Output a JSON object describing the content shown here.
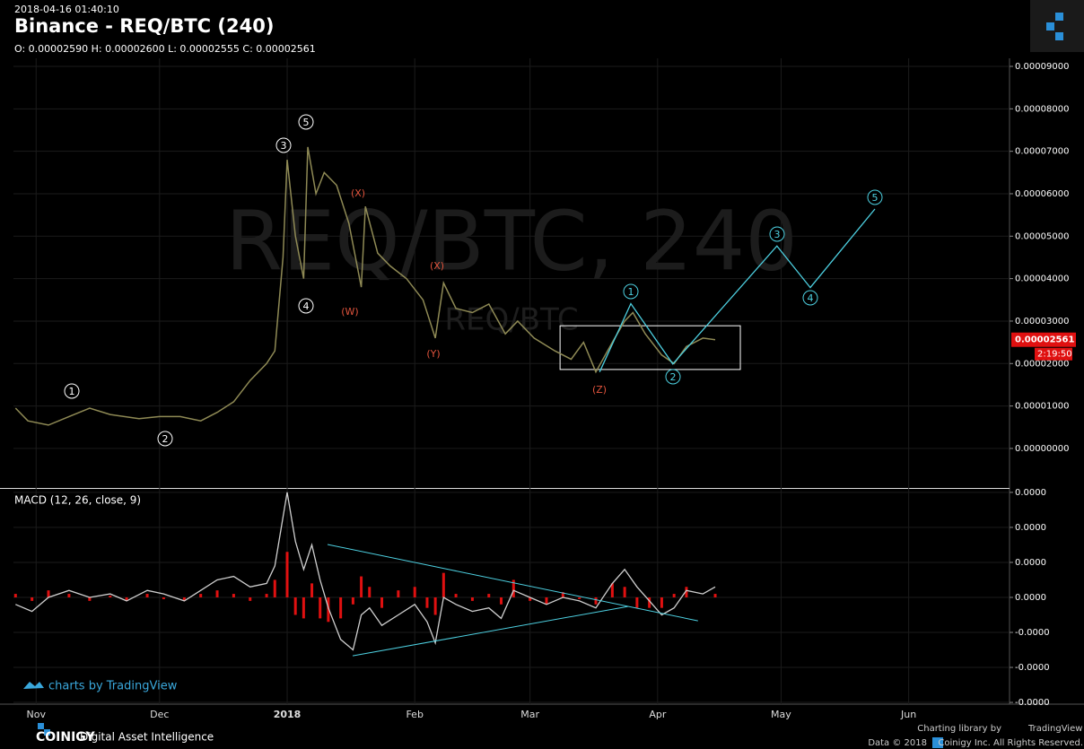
{
  "header": {
    "timestamp": "2018-04-16 01:40:10",
    "title": "Binance - REQ/BTC (240)",
    "ohlc": "O: 0.00002590 H: 0.00002600 L: 0.00002555 C: 0.00002561"
  },
  "chart_data": [
    {
      "type": "line",
      "watermark": "REQ/BTC, 240",
      "watermark_small": "REQ/BTC",
      "xlim": [
        -5.5,
        236.5
      ],
      "ylim": [
        -9.1e-06,
        9.19e-05
      ],
      "xticks": [
        {
          "value": 0,
          "label": "Nov"
        },
        {
          "value": 30,
          "label": "Dec"
        },
        {
          "value": 61,
          "label": "2018"
        },
        {
          "value": 92,
          "label": "Feb"
        },
        {
          "value": 120,
          "label": "Mar"
        },
        {
          "value": 151,
          "label": "Apr"
        },
        {
          "value": 181,
          "label": "May"
        },
        {
          "value": 212,
          "label": "Jun"
        }
      ],
      "yticks": [
        {
          "value": 9e-05,
          "label": "0.00009000"
        },
        {
          "value": 8e-05,
          "label": "0.00008000"
        },
        {
          "value": 7e-05,
          "label": "0.00007000"
        },
        {
          "value": 6e-05,
          "label": "0.00006000"
        },
        {
          "value": 5e-05,
          "label": "0.00005000"
        },
        {
          "value": 4e-05,
          "label": "0.00004000"
        },
        {
          "value": 3e-05,
          "label": "0.00003000"
        },
        {
          "value": 2e-05,
          "label": "0.00002000"
        },
        {
          "value": 1e-05,
          "label": "0.00001000"
        },
        {
          "value": 0,
          "label": "0.00000000"
        }
      ],
      "grid": true,
      "series": [
        {
          "color": "#8f8a55",
          "x": [
            -5,
            -2,
            3,
            8,
            13,
            18,
            25,
            30,
            35,
            40,
            44,
            48,
            52,
            56,
            58,
            60,
            61,
            63,
            65,
            66,
            68,
            70,
            73,
            76,
            79,
            80,
            83,
            86,
            90,
            94,
            97,
            99,
            102,
            106,
            110,
            114,
            117,
            121,
            126,
            130,
            133,
            136,
            140,
            143,
            145,
            148,
            152,
            155,
            158,
            162,
            165
          ],
          "values": [
            9.5e-06,
            6.5e-06,
            5.5e-06,
            7.5e-06,
            9.5e-06,
            8e-06,
            7e-06,
            7.5e-06,
            7.5e-06,
            6.5e-06,
            8.5e-06,
            1.1e-05,
            1.6e-05,
            2e-05,
            2.3e-05,
            4.5e-05,
            6.8e-05,
            5e-05,
            4e-05,
            7.1e-05,
            6e-05,
            6.5e-05,
            6.2e-05,
            5.3e-05,
            3.8e-05,
            5.7e-05,
            4.6e-05,
            4.3e-05,
            4e-05,
            3.5e-05,
            2.6e-05,
            3.9e-05,
            3.3e-05,
            3.2e-05,
            3.4e-05,
            2.7e-05,
            3e-05,
            2.6e-05,
            2.3e-05,
            2.1e-05,
            2.5e-05,
            1.8e-05,
            2.5e-05,
            3e-05,
            3.2e-05,
            2.7e-05,
            2.2e-05,
            2e-05,
            2.4e-05,
            2.6e-05,
            2.561e-05
          ]
        },
        {
          "color": "#4dd0e1",
          "x": [
            136.9,
            144.5,
            154.7,
            180.0,
            188.1,
            203.8
          ],
          "values": [
            1.8e-05,
            3.41e-05,
            1.99e-05,
            4.77e-05,
            3.79e-05,
            5.64e-05
          ]
        }
      ],
      "box": {
        "x": [
          127.3,
          171.1
        ],
        "values": [
          1.86e-05,
          2.89e-05
        ]
      },
      "wave_labels": [
        "1",
        "2",
        "3",
        "4",
        "5",
        "(W)",
        "(X)",
        "(Y)",
        "(X)",
        "(Z)"
      ],
      "projection_labels": [
        "1",
        "2",
        "3",
        "4",
        "5"
      ],
      "last_price": {
        "value": 2.561e-05,
        "label": "0.00002561"
      },
      "countdown": "2:19:50"
    },
    {
      "type": "line",
      "title": "MACD (12, 26, close, 9)",
      "xlim": [
        -5.5,
        236.5
      ],
      "ylim": [
        -3.05e-06,
        3.1e-06
      ],
      "yticks": [
        {
          "value": 3e-06,
          "label": "0.0000"
        },
        {
          "value": 2e-06,
          "label": "0.0000"
        },
        {
          "value": 1e-06,
          "label": "0.0000"
        },
        {
          "value": 0,
          "label": "0.0000"
        },
        {
          "value": -1e-06,
          "label": "-0.0000"
        },
        {
          "value": -2e-06,
          "label": "-0.0000"
        },
        {
          "value": -3e-06,
          "label": "-0.0000"
        }
      ],
      "x": [
        -5,
        -1,
        3,
        8,
        13,
        18,
        22,
        27,
        31,
        36,
        40,
        44,
        48,
        52,
        56,
        58,
        61,
        63,
        65,
        67,
        69,
        71,
        74,
        77,
        79,
        81,
        84,
        88,
        92,
        95,
        97,
        99,
        102,
        106,
        110,
        113,
        116,
        120,
        124,
        128,
        132,
        136,
        140,
        143,
        146,
        149,
        152,
        155,
        158,
        162,
        165
      ],
      "series": [
        {
          "type": "bar",
          "color": "#e01010",
          "values": [
            1e-07,
            -1e-07,
            2e-07,
            1e-07,
            -1e-07,
            5e-08,
            -1e-07,
            1e-07,
            -5e-08,
            -1e-07,
            1e-07,
            2e-07,
            1e-07,
            -1e-07,
            1e-07,
            5e-07,
            1.3e-06,
            -5e-07,
            -6e-07,
            4e-07,
            -6e-07,
            -7e-07,
            -6e-07,
            -2e-07,
            6e-07,
            3e-07,
            -3e-07,
            2e-07,
            3e-07,
            -3e-07,
            -5e-07,
            7e-07,
            1e-07,
            -1e-07,
            1e-07,
            -2e-07,
            5e-07,
            -1e-07,
            -2e-07,
            1.5e-07,
            -5e-08,
            -2e-07,
            4e-07,
            3e-07,
            -3e-07,
            -3e-07,
            -3e-07,
            1e-07,
            3e-07,
            0,
            1e-07
          ]
        },
        {
          "type": "line",
          "color": "#cfcfcf",
          "values": [
            -2e-07,
            -4e-07,
            0,
            2e-07,
            0,
            1e-07,
            -1e-07,
            2e-07,
            1e-07,
            -1e-07,
            2e-07,
            5e-07,
            6e-07,
            3e-07,
            4e-07,
            9e-07,
            3e-06,
            1.6e-06,
            8e-07,
            1.5e-06,
            5e-07,
            -3e-07,
            -1.2e-06,
            -1.5e-06,
            -5e-07,
            -3e-07,
            -8e-07,
            -5e-07,
            -2e-07,
            -7e-07,
            -1.3e-06,
            0,
            -2e-07,
            -4e-07,
            -3e-07,
            -6e-07,
            2e-07,
            0,
            -2e-07,
            0,
            -1e-07,
            -3e-07,
            4e-07,
            8e-07,
            3e-07,
            -1e-07,
            -5e-07,
            -3e-07,
            2e-07,
            1e-07,
            3e-07
          ]
        }
      ],
      "trendlines": [
        {
          "color": "#4dd0e1",
          "x": [
            70.8,
            160.8
          ],
          "values": [
            1.51e-06,
            -6.7e-07
          ]
        },
        {
          "color": "#4dd0e1",
          "x": [
            76.9,
            143.8
          ],
          "values": [
            -1.67e-06,
            -2.6e-07
          ]
        }
      ]
    }
  ],
  "footer": {
    "tradingview_badge": "charts by TradingView",
    "brand": "COINIGY",
    "tagline": "Digital Asset Intelligence",
    "library": "Charting library by",
    "library_name": "TradingView",
    "data_note": "Data © 2018",
    "rights": "Coinigy Inc. All Rights Reserved."
  }
}
